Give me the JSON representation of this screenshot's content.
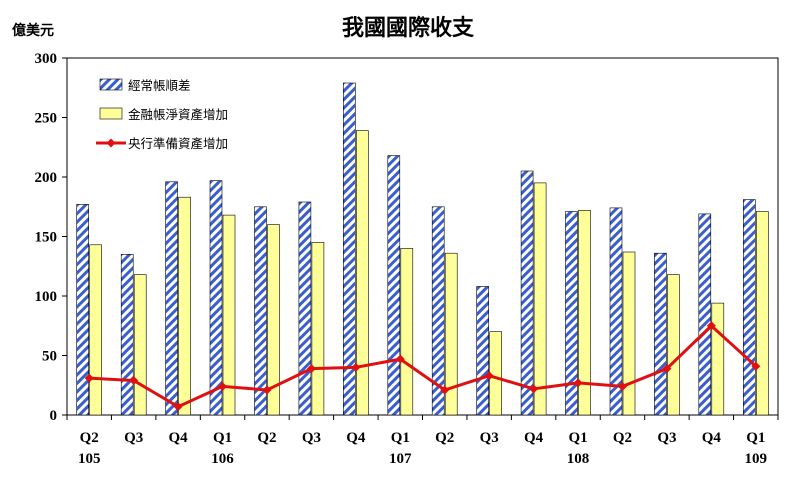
{
  "chart_data": {
    "type": "bar",
    "title": "我國國際收支",
    "ylabel": "億美元",
    "ylim": [
      0,
      300
    ],
    "yticks": [
      0,
      50,
      100,
      150,
      200,
      250,
      300
    ],
    "grid": false,
    "legend_position": "top-left",
    "categories": [
      "Q2",
      "Q3",
      "Q4",
      "Q1",
      "Q2",
      "Q3",
      "Q4",
      "Q1",
      "Q2",
      "Q3",
      "Q4",
      "Q1",
      "Q2",
      "Q3",
      "Q4",
      "Q1"
    ],
    "year_labels": [
      {
        "index": 0,
        "text": "105"
      },
      {
        "index": 3,
        "text": "106"
      },
      {
        "index": 7,
        "text": "107"
      },
      {
        "index": 11,
        "text": "108"
      },
      {
        "index": 15,
        "text": "109"
      }
    ],
    "series": [
      {
        "name": "經常帳順差",
        "kind": "bar",
        "color": "#3a5fcd",
        "pattern": "diagonal-stripes",
        "values": [
          177,
          135,
          196,
          197,
          175,
          179,
          279,
          218,
          175,
          108,
          205,
          171,
          174,
          136,
          169,
          181
        ]
      },
      {
        "name": "金融帳淨資產增加",
        "kind": "bar",
        "color": "#ffff99",
        "values": [
          143,
          118,
          183,
          168,
          160,
          145,
          239,
          140,
          136,
          70,
          195,
          172,
          137,
          118,
          94,
          171
        ]
      },
      {
        "name": "央行準備資產增加",
        "kind": "line",
        "color": "#e01010",
        "values": [
          31,
          29,
          7,
          24,
          21,
          39,
          40,
          47,
          21,
          33,
          22,
          27,
          24,
          39,
          75,
          41
        ]
      }
    ]
  }
}
